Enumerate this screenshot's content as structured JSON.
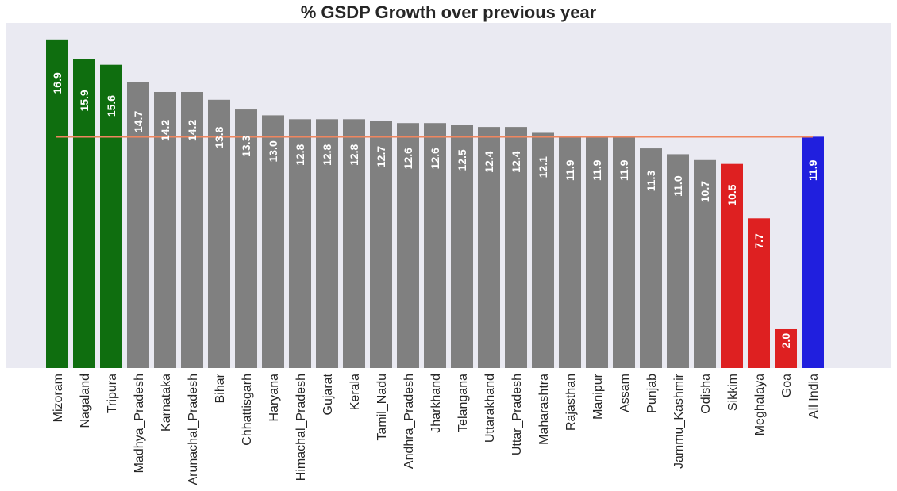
{
  "chart_data": {
    "type": "bar",
    "title": "% GSDP Growth over previous year",
    "xlabel": "",
    "ylabel": "",
    "ylim": [
      0,
      17.75
    ],
    "grid": false,
    "categories": [
      "Mizoram",
      "Nagaland",
      "Tripura",
      "Madhya_Pradesh",
      "Karnataka",
      "Arunachal_Pradesh",
      "Bihar",
      "Chhattisgarh",
      "Haryana",
      "Himachal_Pradesh",
      "Gujarat",
      "Kerala",
      "Tamil_Nadu",
      "Andhra_Pradesh",
      "Jharkhand",
      "Telangana",
      "Uttarakhand",
      "Uttar_Pradesh",
      "Maharashtra",
      "Rajasthan",
      "Manipur",
      "Assam",
      "Punjab",
      "Jammu_Kashmir",
      "Odisha",
      "Sikkim",
      "Meghalaya",
      "Goa",
      "All India"
    ],
    "values": [
      16.9,
      15.9,
      15.6,
      14.7,
      14.2,
      14.2,
      13.8,
      13.3,
      13.0,
      12.8,
      12.8,
      12.8,
      12.7,
      12.6,
      12.6,
      12.5,
      12.4,
      12.4,
      12.1,
      11.9,
      11.9,
      11.9,
      11.3,
      11.0,
      10.7,
      10.5,
      7.7,
      2.0,
      11.9
    ],
    "data_labels": [
      "16.9",
      "15.9",
      "15.6",
      "14.7",
      "14.2",
      "14.2",
      "13.8",
      "13.3",
      "13.0",
      "12.8",
      "12.8",
      "12.8",
      "12.7",
      "12.6",
      "12.6",
      "12.5",
      "12.4",
      "12.4",
      "12.1",
      "11.9",
      "11.9",
      "11.9",
      "11.3",
      "11.0",
      "10.7",
      "10.5",
      "7.7",
      "2.0",
      "11.9"
    ],
    "bar_colors": [
      "#0f6e0f",
      "#0f6e0f",
      "#0f6e0f",
      "#808080",
      "#808080",
      "#808080",
      "#808080",
      "#808080",
      "#808080",
      "#808080",
      "#808080",
      "#808080",
      "#808080",
      "#808080",
      "#808080",
      "#808080",
      "#808080",
      "#808080",
      "#808080",
      "#808080",
      "#808080",
      "#808080",
      "#808080",
      "#808080",
      "#808080",
      "#de2021",
      "#de2021",
      "#de2021",
      "#201fde"
    ],
    "reference_line": {
      "value": 11.9,
      "color": "#f0865f"
    },
    "background_color": "#eaeaf2"
  }
}
